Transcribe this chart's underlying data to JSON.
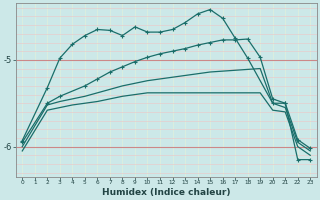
{
  "xlabel": "Humidex (Indice chaleur)",
  "bg_color": "#cce8e8",
  "grid_color": "#eecccc",
  "line_color": "#1a6e6a",
  "red_line_color": "#cc8888",
  "xlim": [
    -0.5,
    23.5
  ],
  "ylim": [
    -6.35,
    -4.35
  ],
  "yticks": [
    -6,
    -5
  ],
  "xticks": [
    0,
    1,
    2,
    3,
    4,
    5,
    6,
    7,
    8,
    9,
    10,
    11,
    12,
    13,
    14,
    15,
    16,
    17,
    18,
    19,
    20,
    21,
    22,
    23
  ],
  "line1_x": [
    0,
    2,
    3,
    4,
    5,
    6,
    7,
    8,
    9,
    10,
    11,
    12,
    13,
    14,
    15,
    16,
    17,
    18,
    20,
    21,
    22,
    23
  ],
  "line1_y": [
    -5.93,
    -5.32,
    -4.98,
    -4.82,
    -4.72,
    -4.65,
    -4.66,
    -4.72,
    -4.62,
    -4.68,
    -4.68,
    -4.65,
    -4.57,
    -4.47,
    -4.42,
    -4.52,
    -4.75,
    -4.98,
    -5.5,
    -5.5,
    -6.15,
    -6.15
  ],
  "line2_x": [
    0,
    2,
    3,
    5,
    6,
    7,
    8,
    9,
    10,
    11,
    12,
    13,
    14,
    15,
    16,
    17,
    18,
    19,
    20,
    21,
    22,
    23
  ],
  "line2_y": [
    -5.95,
    -5.5,
    -5.42,
    -5.3,
    -5.22,
    -5.14,
    -5.08,
    -5.02,
    -4.97,
    -4.93,
    -4.9,
    -4.87,
    -4.83,
    -4.8,
    -4.77,
    -4.77,
    -4.76,
    -4.97,
    -5.45,
    -5.5,
    -5.92,
    -6.02
  ],
  "line3_x": [
    0,
    2,
    3,
    4,
    5,
    6,
    7,
    8,
    9,
    10,
    11,
    12,
    13,
    14,
    15,
    16,
    17,
    18,
    19,
    20,
    21,
    22,
    23
  ],
  "line3_y": [
    -6.0,
    -5.52,
    -5.48,
    -5.45,
    -5.42,
    -5.38,
    -5.34,
    -5.3,
    -5.27,
    -5.24,
    -5.22,
    -5.2,
    -5.18,
    -5.16,
    -5.14,
    -5.13,
    -5.12,
    -5.11,
    -5.1,
    -5.5,
    -5.55,
    -5.95,
    -6.05
  ],
  "line4_x": [
    0,
    2,
    3,
    4,
    5,
    6,
    7,
    8,
    9,
    10,
    11,
    12,
    13,
    14,
    15,
    16,
    17,
    18,
    19,
    20,
    21,
    22,
    23
  ],
  "line4_y": [
    -6.05,
    -5.58,
    -5.55,
    -5.52,
    -5.5,
    -5.48,
    -5.45,
    -5.42,
    -5.4,
    -5.38,
    -5.38,
    -5.38,
    -5.38,
    -5.38,
    -5.38,
    -5.38,
    -5.38,
    -5.38,
    -5.38,
    -5.58,
    -5.6,
    -6.0,
    -6.1
  ]
}
